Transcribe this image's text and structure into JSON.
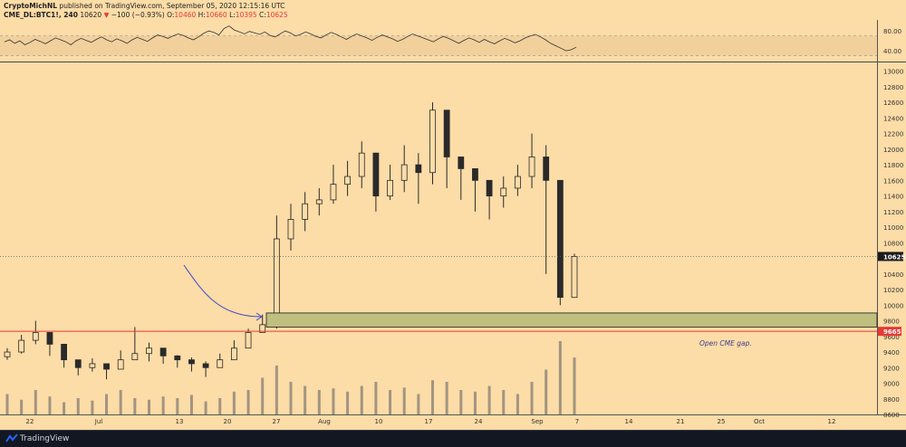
{
  "header": {
    "author": "CryptoMichNL",
    "published": "published on TradingView.com, September 05, 2020 12:15:16 UTC",
    "symbol": "CME_DL:BTC1!, 240",
    "last_price": "10620",
    "change": "−100 (−0.93%)",
    "o_label": "O:",
    "o_val": "10460",
    "h_label": "H:",
    "h_val": "10660",
    "l_label": "L:",
    "l_val": "10395",
    "c_label": "C:",
    "c_val": "10625"
  },
  "footer": {
    "brand": "TradingView"
  },
  "annotations": {
    "gap_label": "Open CME gap."
  },
  "colors": {
    "background": "#fcdca7",
    "candle": "#2a2a2a",
    "volume": "#8a8378",
    "gap_zone_fill": "#bfbf7f",
    "gap_zone_border": "#1a1a1a",
    "support_line": "#e53935",
    "arrow": "#3f48cc",
    "current_price_tag": "#1a1a1a",
    "level_tag": "#e53935"
  },
  "chart_data": [
    {
      "type": "line",
      "title": "RSI",
      "yticks": [
        80,
        40
      ],
      "ylim": [
        20,
        95
      ],
      "band": [
        30,
        70
      ],
      "values": [
        58,
        62,
        55,
        60,
        52,
        57,
        63,
        59,
        54,
        60,
        66,
        62,
        58,
        52,
        60,
        65,
        61,
        57,
        63,
        68,
        62,
        58,
        64,
        60,
        55,
        62,
        67,
        63,
        59,
        66,
        72,
        69,
        65,
        70,
        74,
        71,
        66,
        62,
        68,
        75,
        80,
        77,
        72,
        85,
        90,
        82,
        78,
        74,
        79,
        76,
        73,
        78,
        71,
        68,
        74,
        80,
        76,
        70,
        73,
        78,
        74,
        69,
        66,
        72,
        77,
        73,
        68,
        63,
        69,
        74,
        70,
        66,
        61,
        67,
        72,
        68,
        64,
        59,
        63,
        69,
        74,
        70,
        66,
        62,
        58,
        64,
        69,
        65,
        60,
        55,
        61,
        66,
        62,
        57,
        63,
        58,
        54,
        60,
        65,
        61,
        56,
        60,
        66,
        70,
        73,
        68,
        62,
        55,
        50,
        45,
        40,
        42,
        47
      ]
    },
    {
      "type": "line",
      "title": "CME_DL:BTC1!, 240",
      "x_ticks": [
        "22",
        "Jul",
        "13",
        "20",
        "27",
        "Aug",
        "10",
        "17",
        "24",
        "Sep",
        "7",
        "14",
        "21",
        "25",
        "Oct",
        "12"
      ],
      "y_ticks": [
        13000,
        12800,
        12600,
        12400,
        12200,
        12000,
        11800,
        11600,
        11400,
        11200,
        11000,
        10800,
        10600,
        10400,
        10200,
        10000,
        9800,
        9600,
        9400,
        9200,
        9000,
        8800,
        8600
      ],
      "ylim": [
        8600,
        13100
      ],
      "x": [
        "Jun 18",
        "Jun 20",
        "Jun 22",
        "Jun 24",
        "Jun 26",
        "Jun 28",
        "Jun 30",
        "Jul 2",
        "Jul 4",
        "Jul 6",
        "Jul 8",
        "Jul 10",
        "Jul 12",
        "Jul 14",
        "Jul 16",
        "Jul 18",
        "Jul 20",
        "Jul 22",
        "Jul 24",
        "Jul 26",
        "Jul 28",
        "Jul 30",
        "Aug 1",
        "Aug 3",
        "Aug 5",
        "Aug 7",
        "Aug 9",
        "Aug 11",
        "Aug 13",
        "Aug 15",
        "Aug 17",
        "Aug 19",
        "Aug 21",
        "Aug 23",
        "Aug 25",
        "Aug 27",
        "Aug 29",
        "Aug 31",
        "Sep 2",
        "Sep 4",
        "Sep 5"
      ],
      "close": [
        9400,
        9550,
        9650,
        9500,
        9300,
        9200,
        9250,
        9180,
        9300,
        9380,
        9450,
        9350,
        9300,
        9250,
        9200,
        9300,
        9450,
        9650,
        9750,
        10850,
        11100,
        11300,
        11350,
        11550,
        11650,
        11950,
        11400,
        11600,
        11800,
        11700,
        12500,
        11900,
        11750,
        11600,
        11400,
        11500,
        11650,
        11900,
        11600,
        10100,
        10625
      ],
      "high": [
        9450,
        9620,
        9800,
        9560,
        9350,
        9260,
        9320,
        9250,
        9420,
        9720,
        9520,
        9420,
        9360,
        9330,
        9280,
        9380,
        9550,
        9700,
        9880,
        11150,
        11300,
        11450,
        11500,
        11800,
        11850,
        12100,
        11750,
        11800,
        12050,
        11950,
        12600,
        12350,
        11900,
        11750,
        11600,
        11650,
        11800,
        12200,
        12050,
        11600,
        10660
      ],
      "low": [
        9300,
        9380,
        9500,
        9350,
        9200,
        9100,
        9150,
        9050,
        9250,
        9300,
        9280,
        9250,
        9200,
        9150,
        9080,
        9200,
        9400,
        9550,
        9650,
        9700,
        10700,
        10950,
        11150,
        11300,
        11400,
        11500,
        11200,
        11350,
        11450,
        11300,
        11550,
        11500,
        11350,
        11200,
        11100,
        11250,
        11400,
        11500,
        10400,
        10000,
        10395
      ],
      "volume_level": [
        0.25,
        0.18,
        0.3,
        0.22,
        0.15,
        0.2,
        0.17,
        0.25,
        0.3,
        0.2,
        0.18,
        0.22,
        0.2,
        0.24,
        0.16,
        0.2,
        0.28,
        0.3,
        0.45,
        0.6,
        0.4,
        0.35,
        0.3,
        0.32,
        0.28,
        0.35,
        0.4,
        0.3,
        0.33,
        0.25,
        0.42,
        0.4,
        0.3,
        0.28,
        0.35,
        0.3,
        0.25,
        0.4,
        0.55,
        0.9,
        0.7
      ],
      "levels": {
        "current_price": 10625,
        "support": 9665
      },
      "gap_zone": {
        "from": 9720,
        "to": 9900
      },
      "tags": {
        "current_price": "10625",
        "support": "9665"
      }
    }
  ]
}
